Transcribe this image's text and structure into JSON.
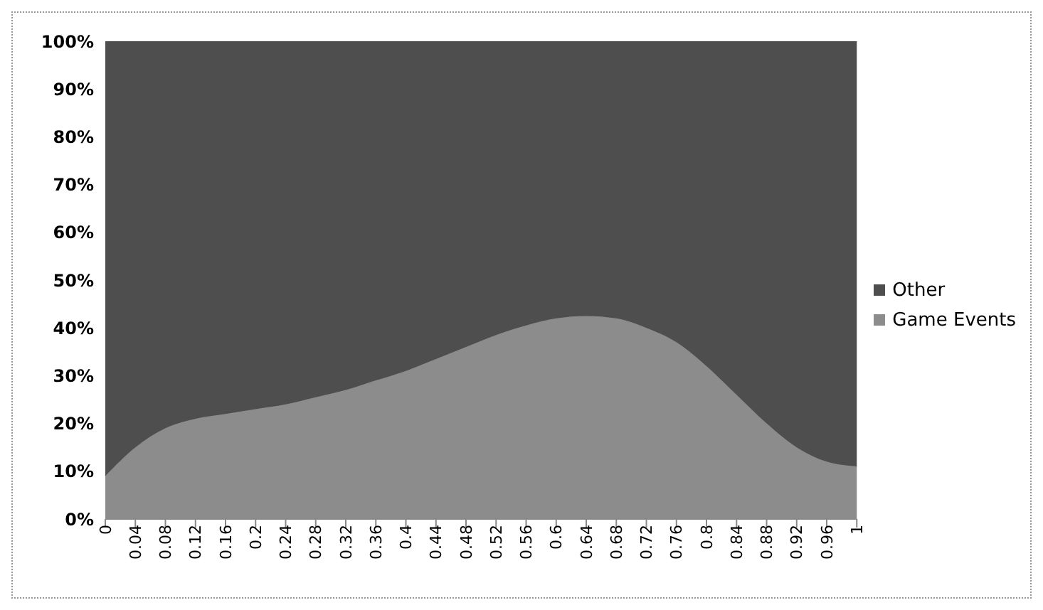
{
  "chart_data": {
    "type": "area",
    "stacked": true,
    "categories": [
      "0",
      "0.04",
      "0.08",
      "0.12",
      "0.16",
      "0.2",
      "0.24",
      "0.28",
      "0.32",
      "0.36",
      "0.4",
      "0.44",
      "0.48",
      "0.52",
      "0.56",
      "0.6",
      "0.64",
      "0.68",
      "0.72",
      "0.76",
      "0.8",
      "0.84",
      "0.88",
      "0.92",
      "0.96",
      "1"
    ],
    "series": [
      {
        "name": "Game Events",
        "color": "#8c8c8c",
        "values": [
          9,
          15,
          19,
          21,
          22,
          23,
          24,
          25.5,
          27,
          29,
          31,
          33.5,
          36,
          38.5,
          40.5,
          42,
          42.5,
          42,
          40,
          37,
          32,
          26,
          20,
          15,
          12,
          11
        ]
      },
      {
        "name": "Other",
        "color": "#4e4e4e",
        "values": [
          91,
          85,
          81,
          79,
          78,
          77,
          76,
          74.5,
          73,
          71,
          69,
          66.5,
          64,
          61.5,
          59.5,
          58,
          57.5,
          58,
          60,
          63,
          68,
          74,
          80,
          85,
          88,
          89
        ]
      }
    ],
    "ylim": [
      0,
      100
    ],
    "yticks": [
      {
        "value": 0,
        "label": "0%"
      },
      {
        "value": 10,
        "label": "10%"
      },
      {
        "value": 20,
        "label": "20%"
      },
      {
        "value": 30,
        "label": "30%"
      },
      {
        "value": 40,
        "label": "40%"
      },
      {
        "value": 50,
        "label": "50%"
      },
      {
        "value": 60,
        "label": "60%"
      },
      {
        "value": 70,
        "label": "70%"
      },
      {
        "value": 80,
        "label": "80%"
      },
      {
        "value": 90,
        "label": "90%"
      },
      {
        "value": 100,
        "label": "100%"
      }
    ],
    "grid": false,
    "legend": "right"
  }
}
